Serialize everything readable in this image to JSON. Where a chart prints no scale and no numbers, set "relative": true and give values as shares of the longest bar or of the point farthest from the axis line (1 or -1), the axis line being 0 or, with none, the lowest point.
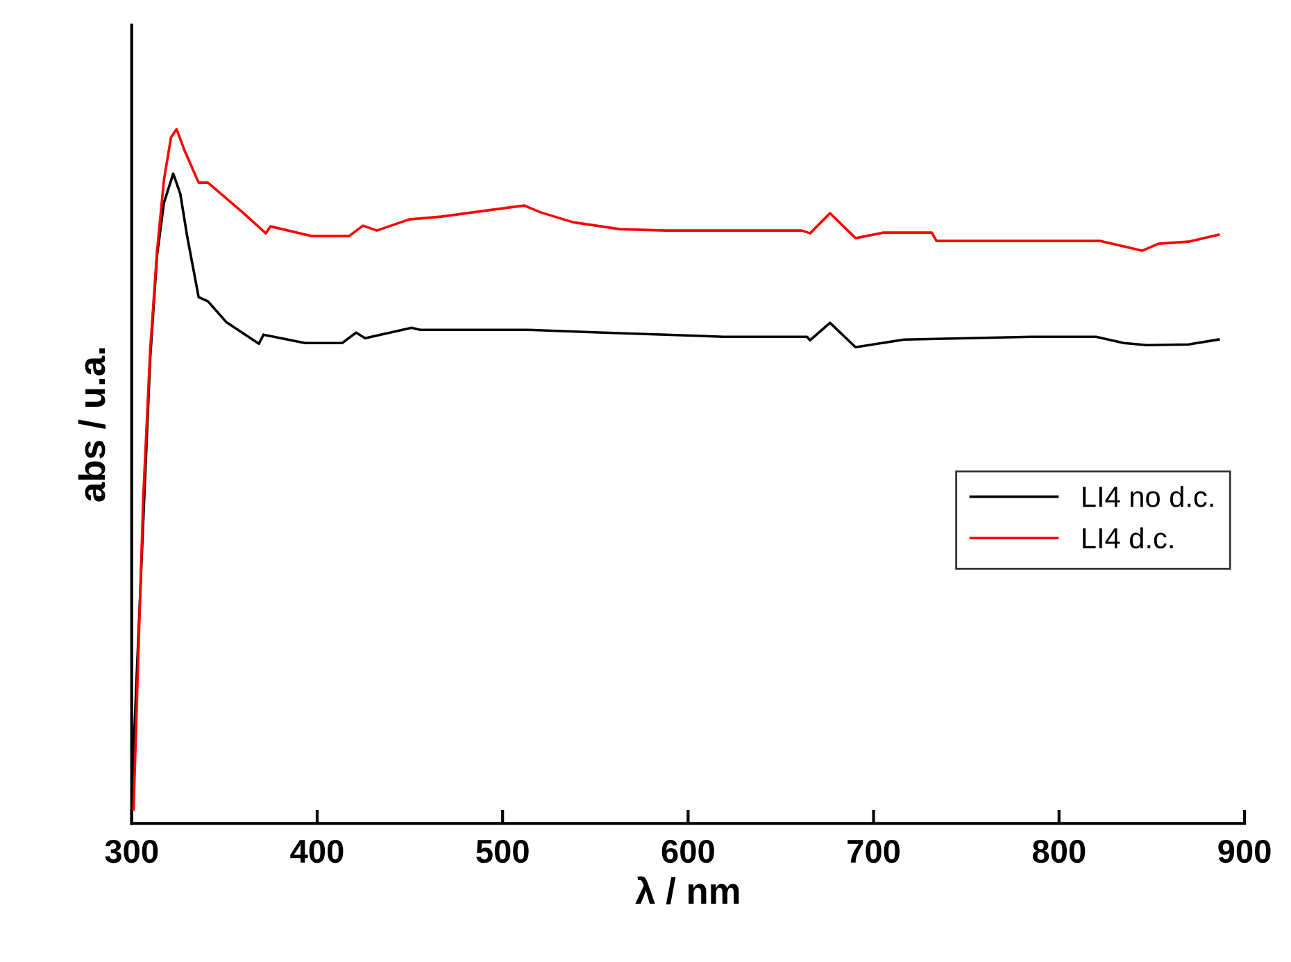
{
  "chart_data": {
    "type": "line",
    "xlabel": "λ / nm",
    "ylabel": "abs / u.a.",
    "relative": true,
    "xlim": [
      300,
      900
    ],
    "xticks": [
      300,
      400,
      500,
      600,
      700,
      800,
      900
    ],
    "grid": false,
    "legend": "center right",
    "marker": "none",
    "line_style": "solid",
    "series": [
      {
        "name": "LI4 no d.c.",
        "color": "#000000",
        "x": [
          300,
          306.2,
          310,
          313.7,
          317.4,
          322.4,
          326.2,
          329.9,
          336.1,
          341.1,
          351.1,
          368.6,
          371.1,
          393.5,
          413.5,
          421,
          425.9,
          450.9,
          455.6,
          513.2,
          554.4,
          588,
          619.2,
          664.1,
          665.8,
          676.5,
          690.3,
          716.5,
          785,
          820,
          834.9,
          847.4,
          869.8,
          886
        ],
        "values": [
          0.041,
          0.433,
          0.671,
          0.819,
          0.894,
          0.936,
          0.907,
          0.846,
          0.758,
          0.752,
          0.722,
          0.691,
          0.704,
          0.692,
          0.692,
          0.707,
          0.699,
          0.714,
          0.711,
          0.711,
          0.707,
          0.704,
          0.701,
          0.701,
          0.696,
          0.721,
          0.686,
          0.697,
          0.701,
          0.701,
          0.692,
          0.689,
          0.69,
          0.697
        ]
      },
      {
        "name": "LI4 d.c.",
        "color": "#ff0000",
        "x": [
          301,
          306.2,
          310,
          313.7,
          317.4,
          321.2,
          324.2,
          328.7,
          336.1,
          341.1,
          359.9,
          372.3,
          374.8,
          397.3,
          417.2,
          424.7,
          432.2,
          449.6,
          466.8,
          494.5,
          511.7,
          520.7,
          537.9,
          563.1,
          588,
          661.3,
          665.8,
          676.5,
          690.3,
          705.3,
          731.4,
          733.9,
          822.4,
          844.9,
          853.6,
          869.8,
          886
        ],
        "values": [
          0.02,
          0.467,
          0.683,
          0.825,
          0.927,
          0.988,
          1,
          0.968,
          0.923,
          0.923,
          0.88,
          0.85,
          0.86,
          0.846,
          0.846,
          0.861,
          0.854,
          0.87,
          0.874,
          0.884,
          0.89,
          0.88,
          0.866,
          0.856,
          0.854,
          0.854,
          0.85,
          0.879,
          0.843,
          0.851,
          0.851,
          0.839,
          0.839,
          0.825,
          0.835,
          0.838,
          0.848
        ]
      }
    ]
  }
}
